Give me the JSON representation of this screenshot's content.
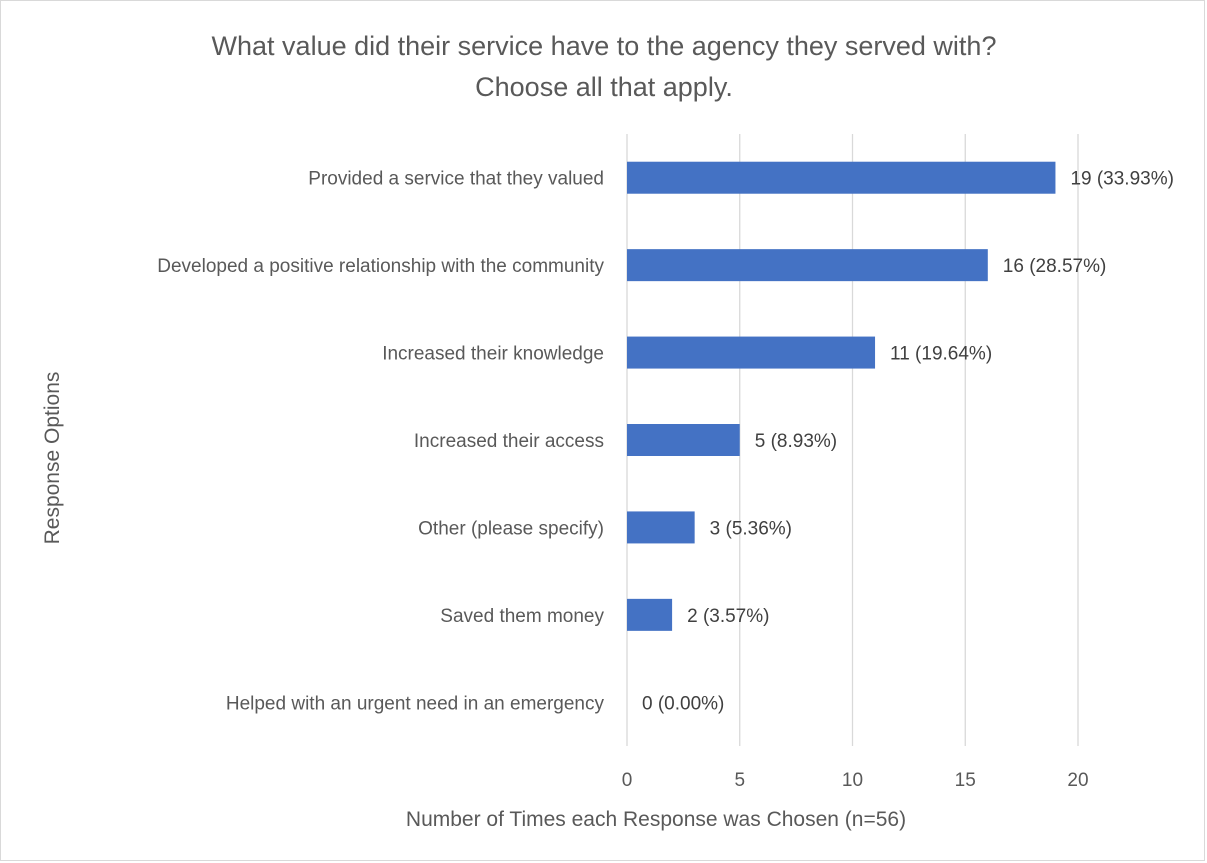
{
  "chart_data": {
    "type": "bar",
    "orientation": "horizontal",
    "title": [
      "What value did their service have to the agency they served with?",
      "Choose all that apply."
    ],
    "xlabel": "Number of Times each Response was Chosen (n=56)",
    "ylabel": "Response Options",
    "xlim": [
      0,
      20
    ],
    "xticks": [
      "0",
      "5",
      "10",
      "15",
      "20"
    ],
    "grid": true,
    "categories": [
      "Provided a service that they valued",
      "Developed a positive relationship with the community",
      "Increased their knowledge",
      "Increased their access",
      "Other (please specify)",
      "Saved them money",
      "Helped with an urgent need in an emergency"
    ],
    "values": [
      19,
      16,
      11,
      5,
      3,
      2,
      0
    ],
    "data_labels": [
      "19 (33.93%)",
      "16 (28.57%)",
      "11 (19.64%)",
      "5 (8.93%)",
      "3 (5.36%)",
      "2 (3.57%)",
      "0 (0.00%)"
    ],
    "bar_color": "#4472C4"
  }
}
